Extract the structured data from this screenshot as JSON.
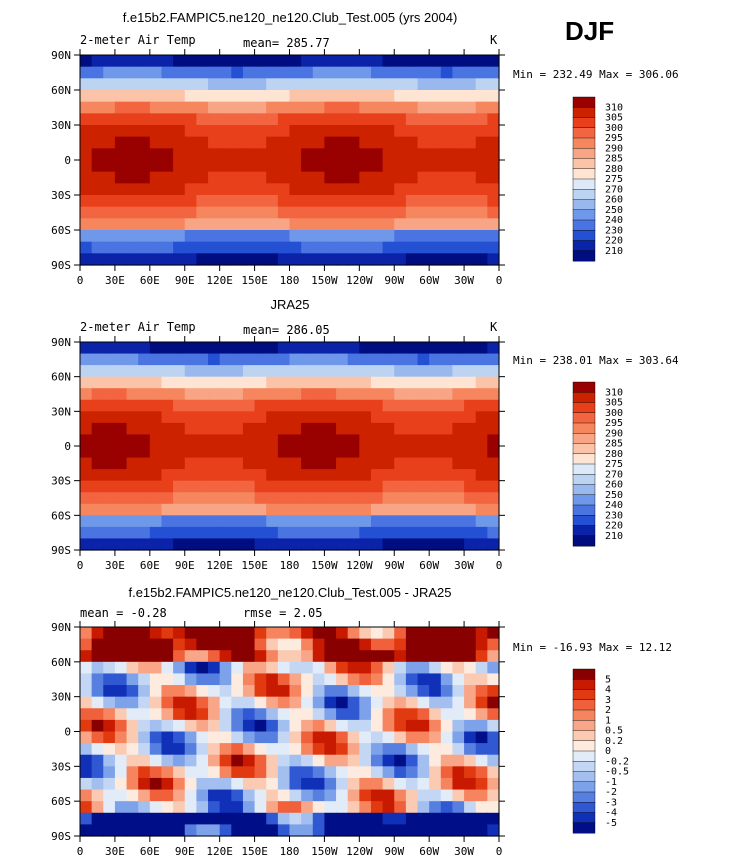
{
  "season": "DJF",
  "panels": [
    {
      "title": "f.e15b2.FAMPIC5.ne120_ne120.Club_Test.005 (yrs 2004)",
      "left_label": "2-meter Air Temp",
      "center_label": "mean= 285.77",
      "right_label": "K",
      "minmax": "Min = 232.49 Max = 306.06",
      "colorbar_labels": [
        "310",
        "305",
        "300",
        "295",
        "290",
        "285",
        "280",
        "275",
        "270",
        "260",
        "250",
        "240",
        "230",
        "220",
        "210"
      ]
    },
    {
      "title": "JRA25",
      "left_label": "2-meter Air Temp",
      "center_label": "mean= 286.05",
      "right_label": "K",
      "minmax": "Min = 238.01 Max = 303.64",
      "colorbar_labels": [
        "310",
        "305",
        "300",
        "295",
        "290",
        "285",
        "280",
        "275",
        "270",
        "260",
        "250",
        "240",
        "230",
        "220",
        "210"
      ]
    },
    {
      "title": "f.e15b2.FAMPIC5.ne120_ne120.Club_Test.005 - JRA25",
      "left_label": "mean =  -0.28",
      "center_label": "rmse =    2.05",
      "right_label": "",
      "minmax": "Min = -16.93 Max =  12.12",
      "colorbar_labels": [
        "5",
        "4",
        "3",
        "2",
        "1",
        "0.5",
        "0.2",
        "0",
        "-0.2",
        "-0.5",
        "-1",
        "-2",
        "-3",
        "-4",
        "-5"
      ]
    }
  ],
  "axes": {
    "lat_labels": [
      "90N",
      "60N",
      "30N",
      "0",
      "30S",
      "60S",
      "90S"
    ],
    "lon_labels": [
      "0",
      "30E",
      "60E",
      "90E",
      "120E",
      "150E",
      "180",
      "150W",
      "120W",
      "90W",
      "60W",
      "30W",
      "0"
    ]
  },
  "colors": {
    "warm_scale": [
      "#990000",
      "#cc2200",
      "#e8401a",
      "#f26540",
      "#f5865e",
      "#f7a585",
      "#fbc4a8",
      "#fde4d3",
      "#dde9f8",
      "#bcd3f2",
      "#98b8ee",
      "#6f98ea",
      "#4a74e2",
      "#2450d4",
      "#0a23a8",
      "#000d80"
    ],
    "diff_scale": [
      "#880000",
      "#c81a00",
      "#e23a10",
      "#f0603a",
      "#f5845f",
      "#f8a687",
      "#fbcab3",
      "#fdebe0",
      "#e2ecf9",
      "#c3d7f4",
      "#a2bff0",
      "#7ea2ea",
      "#577fe0",
      "#2f58d2",
      "#1130b8",
      "#000f88"
    ]
  },
  "chart_data": [
    {
      "type": "heatmap",
      "title": "f.e15b2.FAMPIC5.ne120_ne120.Club_Test.005 (yrs 2004)",
      "variable": "2-meter Air Temp",
      "units": "K",
      "mean": 285.77,
      "min": 232.49,
      "max": 306.06,
      "levels": [
        210,
        220,
        230,
        240,
        250,
        260,
        270,
        275,
        280,
        285,
        290,
        295,
        300,
        305,
        310
      ],
      "lat_range": [
        -90,
        90
      ],
      "lon_range": [
        0,
        360
      ]
    },
    {
      "type": "heatmap",
      "title": "JRA25",
      "variable": "2-meter Air Temp",
      "units": "K",
      "mean": 286.05,
      "min": 238.01,
      "max": 303.64,
      "levels": [
        210,
        220,
        230,
        240,
        250,
        260,
        270,
        275,
        280,
        285,
        290,
        295,
        300,
        305,
        310
      ],
      "lat_range": [
        -90,
        90
      ],
      "lon_range": [
        0,
        360
      ]
    },
    {
      "type": "heatmap",
      "title": "f.e15b2.FAMPIC5.ne120_ne120.Club_Test.005 - JRA25",
      "mean": -0.28,
      "rmse": 2.05,
      "min": -16.93,
      "max": 12.12,
      "levels": [
        -5,
        -4,
        -3,
        -2,
        -1,
        -0.5,
        -0.2,
        0,
        0.2,
        0.5,
        1,
        2,
        3,
        4,
        5
      ],
      "lat_range": [
        -90,
        90
      ],
      "lon_range": [
        0,
        360
      ]
    }
  ]
}
